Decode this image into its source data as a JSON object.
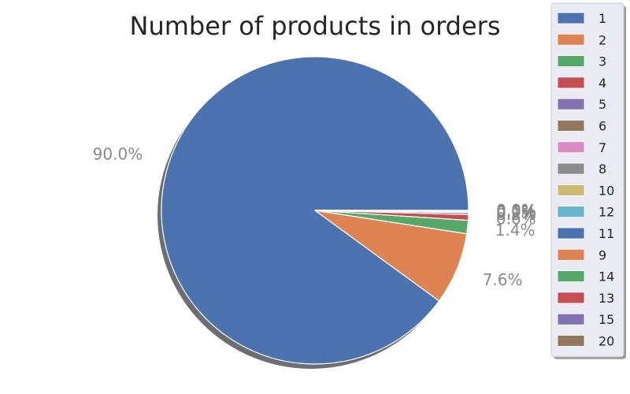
{
  "chart_data": {
    "type": "pie",
    "title": "Number of products in orders",
    "legend_position": "right",
    "shadow": true,
    "slices": [
      {
        "label": "1",
        "value": 90.0,
        "pct_label": "90.0%",
        "color": "#4c72b0"
      },
      {
        "label": "2",
        "value": 7.6,
        "pct_label": "7.6%",
        "color": "#dd8452"
      },
      {
        "label": "3",
        "value": 1.4,
        "pct_label": "1.4%",
        "color": "#55a868"
      },
      {
        "label": "4",
        "value": 0.6,
        "pct_label": "0.6%",
        "color": "#c44e52"
      },
      {
        "label": "5",
        "value": 0.2,
        "pct_label": "0.2%",
        "color": "#8172b3"
      },
      {
        "label": "6",
        "value": 0.1,
        "pct_label": "0.1%",
        "color": "#937860"
      },
      {
        "label": "7",
        "value": 0.05,
        "pct_label": "0.0%",
        "color": "#da8bc3"
      },
      {
        "label": "8",
        "value": 0.02,
        "pct_label": "0.0%",
        "color": "#8c8c8c"
      },
      {
        "label": "10",
        "value": 0.01,
        "pct_label": "0.0%",
        "color": "#ccb974"
      },
      {
        "label": "12",
        "value": 0.01,
        "pct_label": "0.0%",
        "color": "#64b5cd"
      },
      {
        "label": "11",
        "value": 0.01,
        "pct_label": "0.0%",
        "color": "#4c72b0"
      },
      {
        "label": "9",
        "value": 0.01,
        "pct_label": "0.0%",
        "color": "#dd8452"
      },
      {
        "label": "14",
        "value": 0.005,
        "pct_label": "0.0%",
        "color": "#55a868"
      },
      {
        "label": "13",
        "value": 0.005,
        "pct_label": "0.0%",
        "color": "#c44e52"
      },
      {
        "label": "15",
        "value": 0.005,
        "pct_label": "0.0%",
        "color": "#8172b3"
      },
      {
        "label": "20",
        "value": 0.005,
        "pct_label": "0.0%",
        "color": "#937860"
      }
    ]
  }
}
